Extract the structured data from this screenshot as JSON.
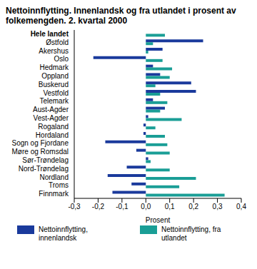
{
  "chart_data": {
    "type": "bar",
    "orientation": "horizontal",
    "title": "Nettoinnflytting. Innenlandsk og fra utlandet i prosent av folkemengden. 2. kvartal 2000",
    "x_label": "Prosent",
    "categories": [
      "Hele landet",
      "Østfold",
      "Akershus",
      "Oslo",
      "Hedmark",
      "Oppland",
      "Buskerud",
      "Vestfold",
      "Telemark",
      "Aust-Agder",
      "Vest-Agder",
      "Rogaland",
      "Hordaland",
      "Sogn og Fjordane",
      "Møre og Romsdal",
      "Sør-Trøndelag",
      "Nord-Trøndelag",
      "Nordland",
      "Troms",
      "Finnmark"
    ],
    "series": [
      {
        "name": "Nettoinnflytting, innenlandsk",
        "color": "#1a3a9c",
        "values": [
          0,
          0.24,
          0.07,
          -0.22,
          0.03,
          0.06,
          0.19,
          0.21,
          0.03,
          0.08,
          0.01,
          -0.01,
          -0.01,
          -0.17,
          -0.04,
          0.01,
          -0.08,
          -0.16,
          -0.06,
          -0.14
        ]
      },
      {
        "name": "Nettoinnflytting, fra utlandet",
        "color": "#1a9e96",
        "values": [
          0.08,
          0.03,
          0.01,
          0.07,
          0.11,
          0.1,
          0.04,
          0.06,
          0.09,
          0.06,
          0.15,
          0.04,
          0.08,
          0.09,
          0.1,
          0.02,
          0.1,
          0.21,
          0.14,
          0.33
        ]
      }
    ],
    "xlim": [
      -0.3,
      0.4
    ],
    "xticks": [
      {
        "value": -0.3,
        "label": "-0,3"
      },
      {
        "value": -0.2,
        "label": "-0,2"
      },
      {
        "value": -0.1,
        "label": "-0,1"
      },
      {
        "value": 0,
        "label": "0,0"
      },
      {
        "value": 0.1,
        "label": "0,1"
      },
      {
        "value": 0.2,
        "label": "0,2"
      },
      {
        "value": 0.3,
        "label": "0,3"
      },
      {
        "value": 0.4,
        "label": "0,4"
      }
    ],
    "grid": false,
    "legend": "bottom"
  }
}
